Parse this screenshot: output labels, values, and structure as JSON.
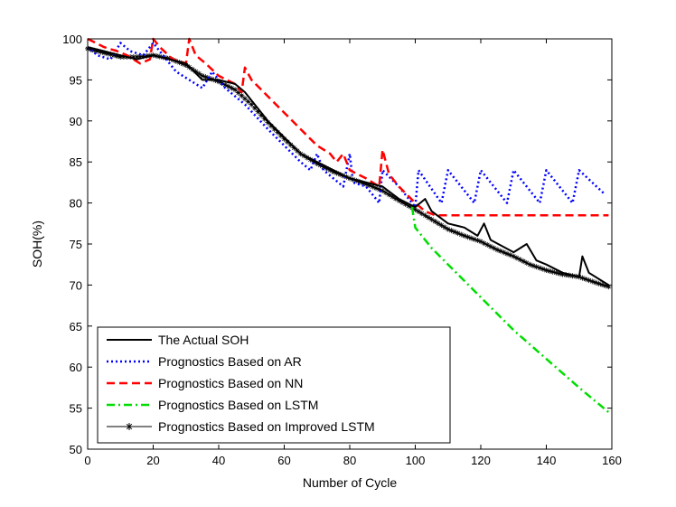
{
  "chart_data": {
    "type": "line",
    "xlabel": "Number of Cycle",
    "ylabel": "SOH(%)",
    "xlim": [
      0,
      160
    ],
    "ylim": [
      50,
      100
    ],
    "x_ticks": [
      0,
      20,
      40,
      60,
      80,
      100,
      120,
      140,
      160
    ],
    "y_ticks": [
      50,
      55,
      60,
      65,
      70,
      75,
      80,
      85,
      90,
      95,
      100
    ],
    "grid": false,
    "legend_position": "bottom-left",
    "series": [
      {
        "name": "The Actual SOH",
        "color": "#000000",
        "style": "solid",
        "points": [
          [
            0,
            99
          ],
          [
            5,
            98.5
          ],
          [
            10,
            98
          ],
          [
            15,
            97.5
          ],
          [
            20,
            98
          ],
          [
            25,
            97.5
          ],
          [
            30,
            97
          ],
          [
            35,
            95
          ],
          [
            40,
            95
          ],
          [
            45,
            94.5
          ],
          [
            48,
            93.5
          ],
          [
            50,
            92.5
          ],
          [
            55,
            90
          ],
          [
            60,
            88
          ],
          [
            65,
            86
          ],
          [
            70,
            85
          ],
          [
            75,
            84
          ],
          [
            80,
            83
          ],
          [
            85,
            82.5
          ],
          [
            90,
            82
          ],
          [
            95,
            80.5
          ],
          [
            100,
            79.5
          ],
          [
            103,
            80.5
          ],
          [
            105,
            79
          ],
          [
            110,
            77.5
          ],
          [
            115,
            77
          ],
          [
            119,
            76
          ],
          [
            121,
            77.5
          ],
          [
            123,
            75.5
          ],
          [
            130,
            74
          ],
          [
            134,
            75
          ],
          [
            137,
            73
          ],
          [
            140,
            72.5
          ],
          [
            145,
            71.5
          ],
          [
            150,
            71
          ],
          [
            151,
            73.5
          ],
          [
            153,
            71.5
          ],
          [
            157,
            70.5
          ],
          [
            159,
            70
          ]
        ]
      },
      {
        "name": "Prognostics Based on AR",
        "color": "#0000ff",
        "style": "dotted",
        "points": [
          [
            0,
            99
          ],
          [
            3,
            98
          ],
          [
            7,
            97.5
          ],
          [
            10,
            99.5
          ],
          [
            13,
            98.5
          ],
          [
            17,
            98
          ],
          [
            20,
            99.5
          ],
          [
            23,
            98
          ],
          [
            27,
            96
          ],
          [
            31,
            95
          ],
          [
            35,
            94
          ],
          [
            38,
            96
          ],
          [
            42,
            94
          ],
          [
            48,
            92
          ],
          [
            55,
            89
          ],
          [
            60,
            87
          ],
          [
            65,
            85
          ],
          [
            68,
            84
          ],
          [
            70,
            86
          ],
          [
            72,
            84
          ],
          [
            75,
            83
          ],
          [
            78,
            82
          ],
          [
            80,
            86
          ],
          [
            81,
            82.5
          ],
          [
            85,
            82
          ],
          [
            89,
            80
          ],
          [
            90,
            84
          ],
          [
            95,
            82
          ],
          [
            100,
            79.5
          ],
          [
            101,
            84
          ],
          [
            108,
            80
          ],
          [
            110,
            84
          ],
          [
            118,
            80
          ],
          [
            120,
            84
          ],
          [
            128,
            80
          ],
          [
            130,
            84
          ],
          [
            138,
            80
          ],
          [
            140,
            84
          ],
          [
            148,
            80
          ],
          [
            150,
            84
          ],
          [
            158,
            81
          ]
        ]
      },
      {
        "name": "Prognostics Based on NN",
        "color": "#ff0000",
        "style": "dashed",
        "points": [
          [
            0,
            100
          ],
          [
            5,
            99
          ],
          [
            9,
            98.5
          ],
          [
            12,
            98
          ],
          [
            16,
            97
          ],
          [
            19,
            97.5
          ],
          [
            20,
            100
          ],
          [
            22,
            99
          ],
          [
            26,
            97.5
          ],
          [
            30,
            97
          ],
          [
            31,
            100
          ],
          [
            33,
            98
          ],
          [
            36,
            97
          ],
          [
            40,
            95.5
          ],
          [
            45,
            94.5
          ],
          [
            47,
            93.5
          ],
          [
            48,
            96.5
          ],
          [
            50,
            95
          ],
          [
            55,
            93
          ],
          [
            60,
            91
          ],
          [
            65,
            89
          ],
          [
            70,
            87
          ],
          [
            74,
            86
          ],
          [
            76,
            85
          ],
          [
            78,
            86
          ],
          [
            80,
            84
          ],
          [
            85,
            83
          ],
          [
            89,
            82
          ],
          [
            90,
            86.5
          ],
          [
            92,
            83.5
          ],
          [
            95,
            82
          ],
          [
            100,
            80
          ],
          [
            103,
            79
          ],
          [
            106,
            78.5
          ],
          [
            110,
            78.5
          ],
          [
            159,
            78.5
          ]
        ]
      },
      {
        "name": "Prognostics Based on LSTM",
        "color": "#00dd00",
        "style": "dashdot",
        "points": [
          [
            99,
            79.5
          ],
          [
            100,
            77
          ],
          [
            105,
            74.5
          ],
          [
            110,
            72.5
          ],
          [
            120,
            68.5
          ],
          [
            130,
            64.5
          ],
          [
            140,
            61
          ],
          [
            150,
            57.5
          ],
          [
            159,
            54.5
          ]
        ]
      },
      {
        "name": "Prognostics Based on Improved LSTM",
        "color": "#000000",
        "style": "solid-star",
        "points": [
          [
            0,
            98.8
          ],
          [
            5,
            98.3
          ],
          [
            10,
            97.8
          ],
          [
            15,
            97.8
          ],
          [
            20,
            98
          ],
          [
            25,
            97.6
          ],
          [
            30,
            96.8
          ],
          [
            35,
            95.5
          ],
          [
            40,
            94.8
          ],
          [
            45,
            93.8
          ],
          [
            50,
            92
          ],
          [
            55,
            89.8
          ],
          [
            60,
            87.8
          ],
          [
            65,
            86
          ],
          [
            70,
            84.8
          ],
          [
            75,
            83.8
          ],
          [
            80,
            83
          ],
          [
            85,
            82.3
          ],
          [
            90,
            81.5
          ],
          [
            95,
            80.3
          ],
          [
            100,
            79.2
          ],
          [
            105,
            78
          ],
          [
            110,
            76.8
          ],
          [
            115,
            76
          ],
          [
            120,
            75.3
          ],
          [
            125,
            74.3
          ],
          [
            130,
            73.5
          ],
          [
            135,
            72.5
          ],
          [
            140,
            71.8
          ],
          [
            145,
            71.3
          ],
          [
            150,
            71
          ],
          [
            155,
            70.3
          ],
          [
            159,
            69.8
          ]
        ]
      }
    ]
  }
}
